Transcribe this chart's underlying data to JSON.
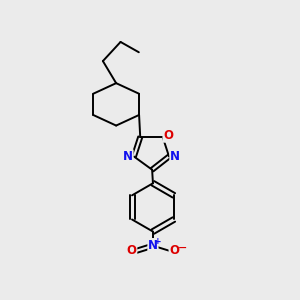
{
  "background_color": "#ebebeb",
  "bond_color": "#000000",
  "N_color": "#1010ee",
  "O_color": "#dd0000",
  "line_width": 1.4,
  "figsize": [
    3.0,
    3.0
  ],
  "dpi": 100,
  "xlim": [
    0,
    10
  ],
  "ylim": [
    0,
    10
  ]
}
